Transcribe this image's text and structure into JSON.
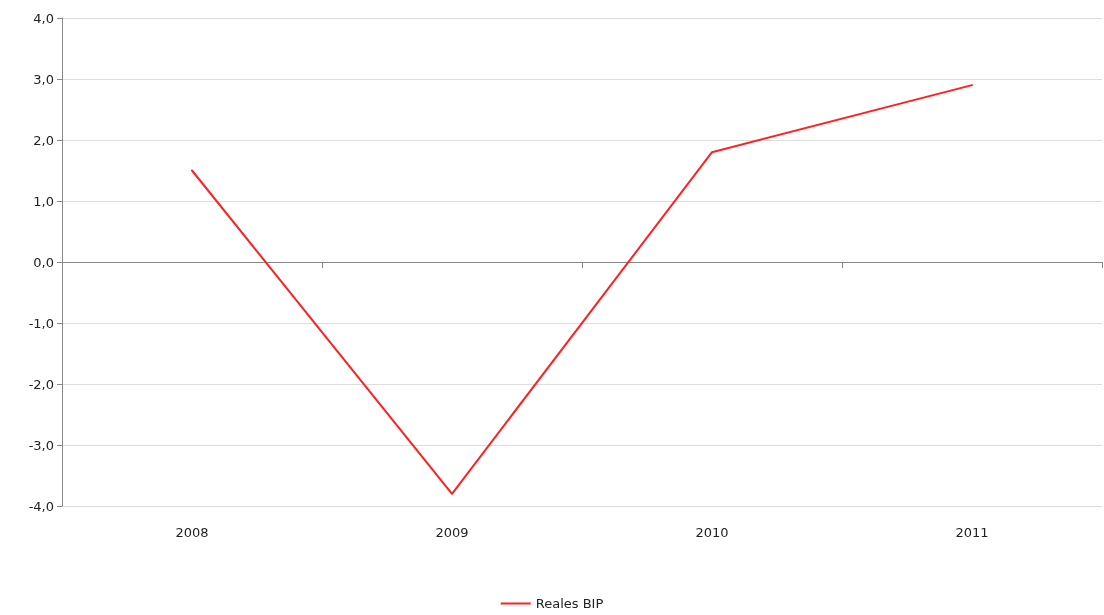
{
  "chart_data": {
    "type": "line",
    "categories": [
      "2008",
      "2009",
      "2010",
      "2011"
    ],
    "series": [
      {
        "name": "Reales BIP",
        "color": "#ff2020",
        "values": [
          1.5,
          -3.8,
          1.8,
          2.9
        ]
      }
    ],
    "ylim": [
      -4,
      4
    ],
    "yticks": [
      {
        "value": -4,
        "label": "-4,0"
      },
      {
        "value": -3,
        "label": "-3,0"
      },
      {
        "value": -2,
        "label": "-2,0"
      },
      {
        "value": -1,
        "label": "-1,0"
      },
      {
        "value": 0,
        "label": "0,0"
      },
      {
        "value": 1,
        "label": "1,0"
      },
      {
        "value": 2,
        "label": "2,0"
      },
      {
        "value": 3,
        "label": "3,0"
      },
      {
        "value": 4,
        "label": "4,0"
      }
    ],
    "grid": "y",
    "legend": "bottom",
    "marker": "none",
    "line_style": "solid"
  }
}
